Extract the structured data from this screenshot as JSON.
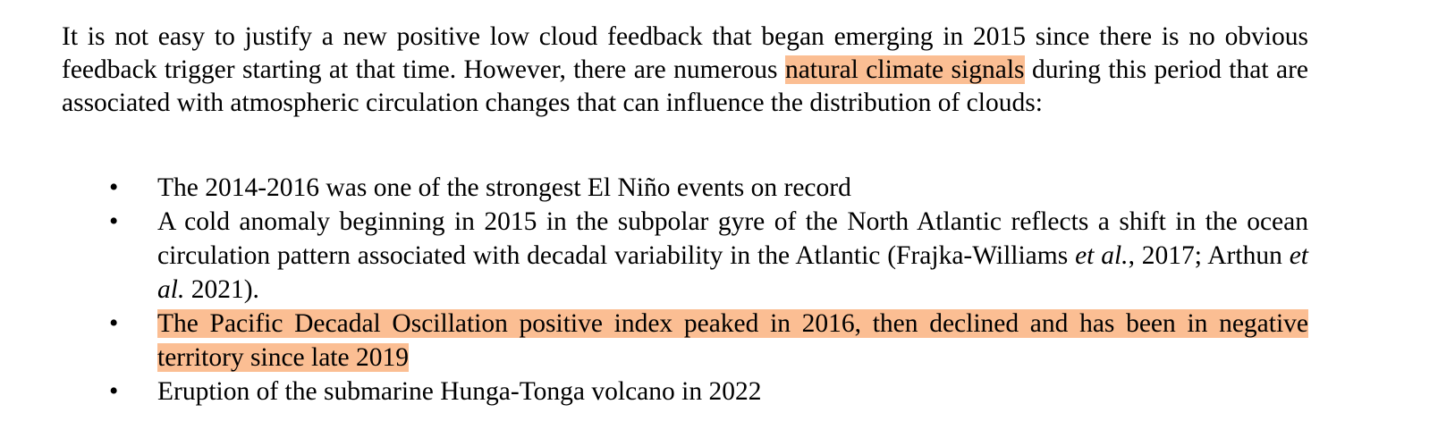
{
  "paragraph": {
    "before": "It is not easy to justify a new positive low cloud feedback that began emerging in 2015 since there is no obvious feedback trigger starting at that time.  However, there are numerous ",
    "highlight": "natural climate signals",
    "after": " during this period that are associated with atmospheric circulation changes that can influence the distribution of clouds:"
  },
  "bullets": [
    {
      "text": "The 2014-2016 was one of the strongest El Niño events on record"
    },
    {
      "parts": [
        "A cold anomaly beginning in 2015 in the subpolar gyre of the North Atlantic reflects a shift in the ocean circulation pattern associated with decadal variability in the Atlantic (Frajka-Williams ",
        "et al.",
        ", 2017; Arthun ",
        "et al.",
        " 2021)."
      ]
    },
    {
      "highlight": "The Pacific Decadal Oscillation positive index peaked in 2016, then declined and has been in negative territory since late 2019"
    },
    {
      "text": "Eruption of the submarine Hunga-Tonga volcano in 2022"
    }
  ],
  "bullet_glyph": "•",
  "highlight_color": "#fbbe93"
}
